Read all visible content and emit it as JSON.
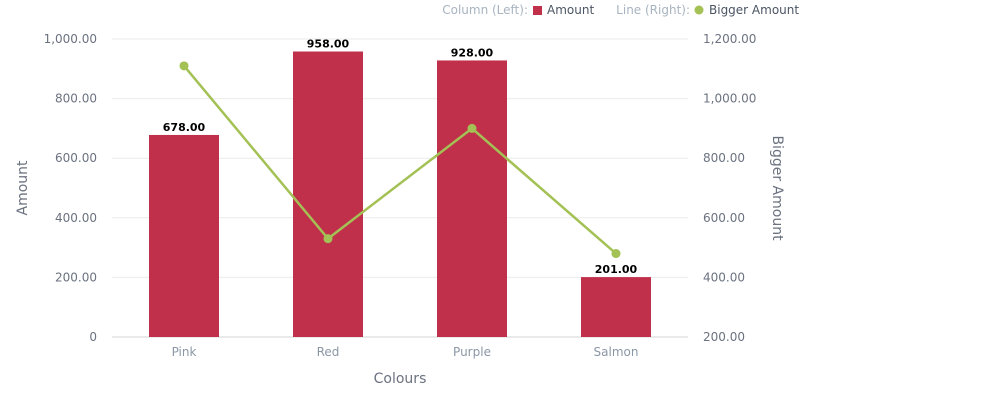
{
  "legend": {
    "column_prefix": "Column (Left):",
    "column_name": "Amount",
    "line_prefix": "Line (Right):",
    "line_name": "Bigger Amount"
  },
  "colors": {
    "bar": "#c0304a",
    "line": "#a3c154",
    "grid": "#ebebeb",
    "legend_prefix": "#a8b4c0",
    "legend_name": "#4b5563"
  },
  "chart_data": {
    "type": "bar",
    "categories": [
      "Pink",
      "Red",
      "Purple",
      "Salmon"
    ],
    "series": [
      {
        "name": "Amount",
        "type": "bar",
        "axis": "left",
        "values": [
          678,
          958,
          928,
          201
        ]
      },
      {
        "name": "Bigger Amount",
        "type": "line",
        "axis": "right",
        "values": [
          1110,
          530,
          900,
          480
        ]
      }
    ],
    "data_labels": [
      "678.00",
      "958.00",
      "928.00",
      "201.00"
    ],
    "xlabel": "Colours",
    "ylabel": "Amount",
    "y2label": "Bigger Amount",
    "ylim": [
      0,
      1000
    ],
    "y2lim": [
      200,
      1200
    ],
    "yticks": [
      "0",
      "200.00",
      "400.00",
      "600.00",
      "800.00",
      "1,000.00"
    ],
    "y2ticks": [
      "200.00",
      "400.00",
      "600.00",
      "800.00",
      "1,000.00",
      "1,200.00"
    ],
    "grid": true,
    "legend_position": "top-right"
  }
}
